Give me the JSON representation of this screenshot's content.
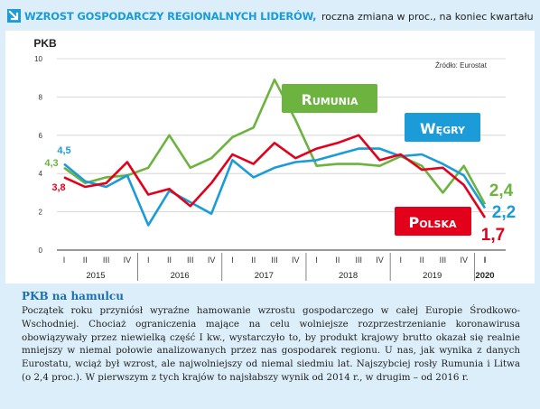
{
  "header": {
    "title": "WZROST GOSPODARCZY REGIONALNYCH LIDERÓW,",
    "subtitle": "roczna zmiana w proc., na koniec kwartału",
    "arrow_icon": "arrow-down-right-icon"
  },
  "chart_data": {
    "type": "line",
    "ylabel": "PKB",
    "source": "Źródło: Eurostat",
    "ylim": [
      0,
      10
    ],
    "yticks": [
      "0",
      "2",
      "4",
      "6",
      "8",
      "10"
    ],
    "quarters": [
      "I",
      "II",
      "III",
      "IV",
      "I",
      "II",
      "III",
      "IV",
      "I",
      "II",
      "III",
      "IV",
      "I",
      "II",
      "III",
      "IV",
      "I",
      "II",
      "III",
      "IV",
      "I"
    ],
    "years": [
      "2015",
      "2016",
      "2017",
      "2018",
      "2019",
      "2020"
    ],
    "grid": true,
    "series": [
      {
        "name": "Rumunia",
        "color": "#6cb33f",
        "values": [
          4.3,
          3.5,
          3.8,
          3.9,
          4.3,
          6.0,
          4.3,
          4.8,
          5.9,
          6.4,
          8.9,
          6.8,
          4.4,
          4.5,
          4.5,
          4.4,
          4.9,
          4.4,
          3.0,
          4.4,
          2.4
        ]
      },
      {
        "name": "Węgry",
        "color": "#1b9bd7",
        "values": [
          4.5,
          3.6,
          3.3,
          3.9,
          1.3,
          3.1,
          2.5,
          1.9,
          4.7,
          3.8,
          4.3,
          4.6,
          4.7,
          5.0,
          5.3,
          5.3,
          4.9,
          5.0,
          4.5,
          3.9,
          2.2
        ]
      },
      {
        "name": "Polska",
        "color": "#e3001b",
        "values": [
          3.8,
          3.3,
          3.5,
          4.6,
          2.9,
          3.2,
          2.3,
          3.5,
          5.0,
          4.5,
          5.6,
          4.8,
          5.3,
          5.6,
          6.0,
          4.7,
          5.0,
          4.2,
          4.3,
          3.4,
          1.7
        ]
      }
    ],
    "annotations": {
      "rumunia_start": "4,3",
      "wegry_start": "4,5",
      "polska_start": "3,8",
      "rumunia_end": "2,4",
      "wegry_end": "2,2",
      "polska_end": "1,7"
    }
  },
  "text": {
    "subheading": "PKB na hamulcu",
    "body": "Początek roku przyniósł wyraźne hamowanie wzrostu gospodarczego w całej Europie Środkowo-Wschodniej. Chociaż ograniczenia mające na celu wolniejsze rozprzestrzenianie koronawirusa obowiązywały przez niewielką część I kw., wystarczyło to, by produkt krajowy brutto okazał się realnie mniejszy w niemal połowie analizowanych przez nas gospodarek regionu. U nas, jak wynika z danych Eurostatu, wciąż był wzrost, ale najwolniejszy od niemal siedmiu lat. Najszybciej rosły Rumunia i Litwa (o 2,4 proc.). W pierwszym z tych krajów to najsłabszy wynik od 2014 r., w drugim – od 2016 r."
  }
}
